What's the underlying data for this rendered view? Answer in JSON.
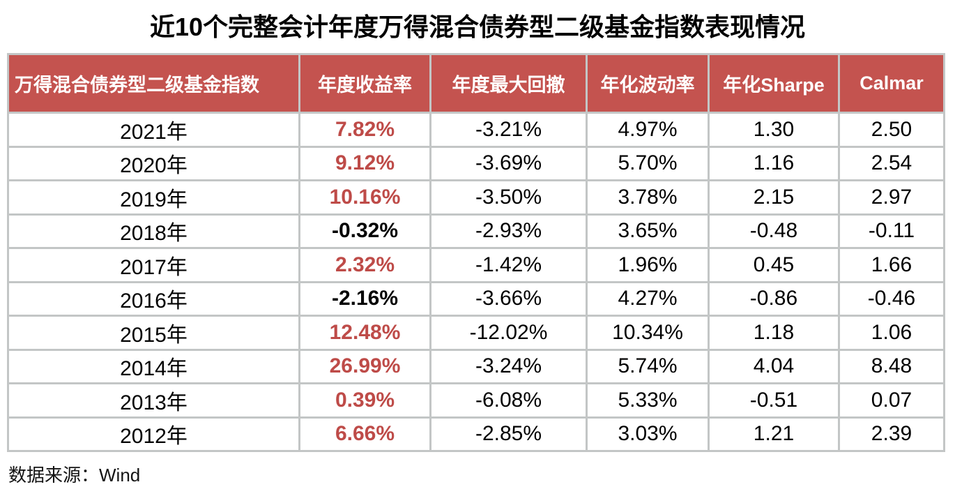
{
  "page": {
    "title": "近10个完整会计年度万得混合债券型二级基金指数表现情况",
    "source_note": "数据来源：Wind"
  },
  "colors": {
    "title_text": "#000000",
    "header_bg": "#C4534F",
    "header_text": "#FFFFFF",
    "positive_return_text": "#BE4B48",
    "negative_return_text": "#000000",
    "grid_line": "#C3C6C6"
  },
  "chart_data": {
    "type": "table",
    "title": "近10个完整会计年度万得混合债券型二级基金指数表现情况",
    "source": "数据来源：Wind",
    "columns": [
      "万得混合债券型二级基金指数",
      "年度收益率",
      "年度最大回撤",
      "年化波动率",
      "年化Sharpe",
      "Calmar"
    ],
    "rows": [
      [
        "2021年",
        "7.82%",
        "-3.21%",
        "4.97%",
        "1.30",
        "2.50"
      ],
      [
        "2020年",
        "9.12%",
        "-3.69%",
        "5.70%",
        "1.16",
        "2.54"
      ],
      [
        "2019年",
        "10.16%",
        "-3.50%",
        "3.78%",
        "2.15",
        "2.97"
      ],
      [
        "2018年",
        "-0.32%",
        "-2.93%",
        "3.65%",
        "-0.48",
        "-0.11"
      ],
      [
        "2017年",
        "2.32%",
        "-1.42%",
        "1.96%",
        "0.45",
        "1.66"
      ],
      [
        "2016年",
        "-2.16%",
        "-3.66%",
        "4.27%",
        "-0.86",
        "-0.46"
      ],
      [
        "2015年",
        "12.48%",
        "-12.02%",
        "10.34%",
        "1.18",
        "1.06"
      ],
      [
        "2014年",
        "26.99%",
        "-3.24%",
        "5.74%",
        "4.04",
        "8.48"
      ],
      [
        "2013年",
        "0.39%",
        "-6.08%",
        "5.33%",
        "-0.51",
        "0.07"
      ],
      [
        "2012年",
        "6.66%",
        "-2.85%",
        "3.03%",
        "1.21",
        "2.39"
      ]
    ],
    "highlight_rule": "年度收益率 column bold; red when positive, black when negative"
  }
}
